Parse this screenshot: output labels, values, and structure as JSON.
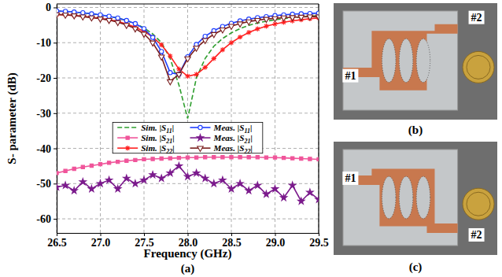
{
  "chart_data": {
    "type": "line",
    "panel_label": "(a)",
    "x_label": "Frequency (GHz)",
    "y_label": "S- parameter (dB)",
    "x": [
      26.5,
      26.6,
      26.7,
      26.8,
      26.9,
      27.0,
      27.1,
      27.2,
      27.3,
      27.4,
      27.5,
      27.6,
      27.7,
      27.8,
      27.9,
      28.0,
      28.1,
      28.2,
      28.3,
      28.4,
      28.5,
      28.6,
      28.7,
      28.8,
      28.9,
      29.0,
      29.1,
      29.2,
      29.3,
      29.4,
      29.5
    ],
    "xlim": [
      26.5,
      29.5
    ],
    "xticks": [
      26.5,
      {
        "value": 27,
        "label": "27.0"
      },
      27.5,
      {
        "value": 28,
        "label": "28.0"
      },
      28.5,
      {
        "value": 29,
        "label": "29.0"
      },
      29.5
    ],
    "ylim": [
      -64,
      1
    ],
    "yticks": [
      0,
      -10,
      -20,
      -30,
      -40,
      -50,
      -60
    ],
    "grid": true,
    "legend": "center",
    "series": [
      {
        "name": "Sim. |S11|",
        "color": "#2e9e2e",
        "line_style": "dashed",
        "marker": "none",
        "values": [
          -1.0,
          -1.1,
          -1.3,
          -1.5,
          -1.8,
          -2.1,
          -2.5,
          -3.0,
          -3.7,
          -4.6,
          -5.8,
          -7.5,
          -10.0,
          -14.5,
          -22.0,
          -31.5,
          -20.0,
          -14.5,
          -11.0,
          -8.8,
          -7.2,
          -6.0,
          -5.1,
          -4.4,
          -3.9,
          -3.5,
          -3.2,
          -2.9,
          -2.7,
          -2.5,
          -2.3
        ]
      },
      {
        "name": "Sim. |S21|",
        "color": "#f0559a",
        "line_style": "solid",
        "marker": "square",
        "values": [
          -47.0,
          -46.4,
          -45.8,
          -45.3,
          -44.9,
          -44.5,
          -44.1,
          -43.8,
          -43.5,
          -43.3,
          -43.1,
          -43.0,
          -42.9,
          -42.8,
          -42.7,
          -42.6,
          -42.6,
          -42.5,
          -42.5,
          -42.5,
          -42.5,
          -42.5,
          -42.5,
          -42.5,
          -42.6,
          -42.6,
          -42.7,
          -42.8,
          -42.9,
          -43.0,
          -43.1
        ]
      },
      {
        "name": "Sim. |S22|",
        "color": "#ff2020",
        "line_style": "solid",
        "marker": "asterisk",
        "values": [
          -2.0,
          -2.1,
          -2.3,
          -2.5,
          -2.8,
          -3.1,
          -3.5,
          -4.0,
          -4.7,
          -5.6,
          -6.8,
          -8.4,
          -10.6,
          -13.8,
          -17.5,
          -19.5,
          -19.0,
          -17.0,
          -14.5,
          -12.0,
          -10.0,
          -8.4,
          -7.1,
          -6.1,
          -5.3,
          -4.7,
          -4.2,
          -3.8,
          -3.5,
          -3.2,
          -3.0
        ]
      },
      {
        "name": "Meas. |S11|",
        "color": "#1f3fff",
        "line_style": "solid",
        "marker": "circle",
        "values": [
          -1.0,
          -1.1,
          -1.3,
          -1.5,
          -1.8,
          -2.1,
          -2.5,
          -3.0,
          -3.7,
          -4.6,
          -6.0,
          -8.5,
          -12.5,
          -18.5,
          -19.0,
          -14.0,
          -10.5,
          -8.2,
          -6.6,
          -5.4,
          -4.5,
          -3.8,
          -3.3,
          -2.9,
          -2.6,
          -2.3,
          -2.1,
          -1.9,
          -1.8,
          -1.7,
          -1.6
        ]
      },
      {
        "name": "Meas. |S21|",
        "color": "#7b1a8c",
        "line_style": "solid",
        "marker": "star",
        "values": [
          -51.0,
          -50.5,
          -52.0,
          -49.5,
          -51.5,
          -50.0,
          -49.0,
          -51.5,
          -48.5,
          -50.0,
          -49.0,
          -47.5,
          -48.5,
          -47.0,
          -45.0,
          -48.0,
          -47.0,
          -48.5,
          -50.0,
          -49.0,
          -51.5,
          -50.0,
          -52.0,
          -50.5,
          -53.0,
          -51.5,
          -54.0,
          -50.5,
          -55.0,
          -52.5,
          -54.5
        ]
      },
      {
        "name": "Meas. |S22|",
        "color": "#7a1f1f",
        "line_style": "solid",
        "marker": "triangle-down",
        "values": [
          -2.0,
          -2.1,
          -2.3,
          -2.6,
          -2.9,
          -3.2,
          -3.6,
          -4.2,
          -5.0,
          -6.0,
          -7.5,
          -10.0,
          -14.0,
          -21.0,
          -19.0,
          -14.5,
          -11.5,
          -9.3,
          -7.6,
          -6.3,
          -5.3,
          -4.6,
          -4.0,
          -3.6,
          -3.3,
          -3.1,
          -2.9,
          -2.8,
          -2.7,
          -2.6,
          -2.6
        ]
      }
    ]
  },
  "photos": [
    {
      "panel_label": "(b)",
      "ports": [
        "#1",
        "#2"
      ]
    },
    {
      "panel_label": "(c)",
      "ports": [
        "#1",
        "#2"
      ]
    }
  ]
}
